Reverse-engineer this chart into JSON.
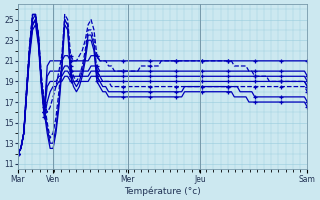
{
  "xlabel": "Température (°c)",
  "ylim": [
    10.5,
    26.5
  ],
  "yticks": [
    11,
    13,
    15,
    17,
    19,
    21,
    23,
    25
  ],
  "day_labels": [
    "Mar",
    "Ven",
    "Mer",
    "Jeu",
    "Sam"
  ],
  "day_positions": [
    0.0,
    0.12,
    0.38,
    0.63,
    1.0
  ],
  "bg_color": "#cce8f0",
  "line_color": "#0000bb",
  "grid_color": "#99ccdd",
  "n_points": 100,
  "series": [
    [
      12.0,
      12.5,
      14.0,
      18.5,
      22.5,
      25.5,
      25.5,
      23.5,
      19.5,
      17.0,
      16.0,
      16.5,
      17.5,
      18.5,
      20.0,
      21.5,
      25.5,
      25.0,
      21.5,
      21.0,
      21.0,
      21.5,
      22.0,
      23.0,
      24.5,
      25.0,
      24.0,
      21.5,
      21.0,
      21.0,
      21.0,
      20.5,
      20.5,
      20.0,
      20.0,
      20.0,
      20.0,
      20.0,
      20.0,
      20.0,
      20.0,
      20.0,
      20.5,
      20.5,
      20.5,
      20.5,
      20.5,
      20.5,
      20.5,
      21.0,
      21.0,
      21.0,
      21.0,
      21.0,
      21.0,
      21.0,
      21.0,
      21.0,
      21.0,
      21.0,
      21.0,
      21.0,
      21.0,
      21.0,
      21.0,
      21.0,
      21.0,
      21.0,
      21.0,
      21.0,
      21.0,
      21.0,
      21.0,
      21.0,
      20.5,
      20.5,
      20.5,
      20.5,
      20.5,
      20.0,
      20.0,
      19.5,
      19.5,
      19.5,
      19.5,
      19.5,
      19.0,
      19.0,
      19.0,
      19.0,
      19.0,
      19.0,
      19.0,
      19.0,
      19.0,
      19.0,
      19.0,
      19.0,
      19.0,
      18.5
    ],
    [
      12.0,
      12.5,
      14.0,
      18.5,
      22.5,
      25.5,
      25.5,
      23.5,
      19.5,
      17.0,
      15.0,
      13.5,
      14.0,
      15.5,
      18.0,
      21.0,
      25.0,
      24.5,
      20.5,
      19.5,
      19.0,
      19.5,
      20.5,
      22.0,
      24.0,
      24.0,
      23.0,
      20.0,
      19.5,
      19.0,
      19.0,
      19.0,
      18.5,
      18.5,
      18.5,
      18.5,
      18.5,
      18.5,
      18.5,
      18.5,
      18.5,
      18.5,
      18.5,
      18.5,
      18.5,
      18.5,
      18.5,
      18.5,
      18.5,
      18.5,
      18.5,
      18.5,
      18.5,
      18.5,
      18.5,
      18.5,
      18.5,
      18.5,
      18.5,
      18.5,
      18.5,
      18.5,
      18.5,
      18.5,
      18.5,
      18.5,
      18.5,
      18.5,
      18.5,
      18.5,
      18.5,
      18.5,
      18.5,
      18.5,
      18.5,
      18.5,
      18.5,
      18.5,
      18.5,
      18.5,
      18.5,
      18.5,
      18.5,
      18.5,
      18.5,
      18.5,
      18.5,
      18.5,
      18.5,
      18.5,
      18.5,
      18.5,
      18.5,
      18.5,
      18.5,
      18.5,
      18.5,
      18.5,
      18.5,
      18.0
    ],
    [
      12.0,
      12.5,
      14.0,
      18.5,
      22.5,
      25.5,
      25.5,
      23.5,
      19.0,
      16.5,
      14.5,
      13.0,
      13.0,
      14.5,
      17.0,
      20.5,
      25.0,
      24.5,
      20.0,
      19.0,
      18.5,
      19.0,
      20.0,
      21.5,
      23.5,
      23.5,
      22.5,
      19.5,
      19.0,
      18.5,
      18.5,
      18.0,
      18.0,
      18.0,
      18.0,
      18.0,
      18.0,
      18.0,
      18.0,
      18.0,
      18.0,
      18.0,
      18.0,
      18.0,
      18.0,
      18.0,
      18.0,
      18.0,
      18.0,
      18.0,
      18.0,
      18.0,
      18.0,
      18.0,
      18.0,
      18.0,
      18.0,
      18.5,
      18.5,
      18.5,
      18.5,
      18.5,
      18.5,
      18.5,
      18.5,
      18.5,
      18.5,
      18.5,
      18.5,
      18.5,
      18.5,
      18.5,
      18.5,
      18.5,
      18.5,
      18.5,
      18.0,
      18.0,
      18.0,
      18.0,
      18.0,
      17.5,
      17.5,
      17.5,
      17.5,
      17.5,
      17.5,
      17.5,
      17.5,
      17.5,
      17.5,
      17.5,
      17.5,
      17.5,
      17.5,
      17.5,
      17.5,
      17.5,
      17.5,
      17.0
    ],
    [
      12.0,
      12.5,
      14.0,
      18.0,
      22.0,
      25.0,
      25.5,
      23.0,
      19.0,
      16.0,
      14.0,
      12.5,
      12.5,
      14.0,
      16.5,
      20.0,
      24.5,
      24.0,
      19.5,
      18.5,
      18.0,
      18.5,
      19.5,
      21.0,
      23.0,
      23.0,
      22.0,
      19.0,
      18.5,
      18.0,
      18.0,
      17.5,
      17.5,
      17.5,
      17.5,
      17.5,
      17.5,
      17.5,
      17.5,
      17.5,
      17.5,
      17.5,
      17.5,
      17.5,
      17.5,
      17.5,
      17.5,
      17.5,
      17.5,
      17.5,
      17.5,
      17.5,
      17.5,
      17.5,
      17.5,
      17.5,
      17.5,
      18.0,
      18.0,
      18.0,
      18.0,
      18.0,
      18.0,
      18.0,
      18.0,
      18.0,
      18.0,
      18.0,
      18.0,
      18.0,
      18.0,
      18.0,
      18.0,
      18.0,
      17.5,
      17.5,
      17.5,
      17.5,
      17.5,
      17.0,
      17.0,
      17.0,
      17.0,
      17.0,
      17.0,
      17.0,
      17.0,
      17.0,
      17.0,
      17.0,
      17.0,
      17.0,
      17.0,
      17.0,
      17.0,
      17.0,
      17.0,
      17.0,
      17.0,
      16.5
    ],
    [
      12.0,
      12.5,
      14.0,
      18.0,
      22.0,
      24.5,
      25.0,
      23.0,
      19.0,
      16.0,
      20.5,
      21.0,
      21.0,
      21.0,
      21.0,
      21.0,
      21.5,
      21.5,
      21.0,
      21.0,
      21.0,
      21.0,
      21.0,
      21.0,
      21.0,
      21.5,
      21.5,
      21.5,
      21.0,
      21.0,
      21.0,
      21.0,
      21.0,
      21.0,
      21.0,
      21.0,
      21.0,
      21.0,
      21.0,
      21.0,
      21.0,
      21.0,
      21.0,
      21.0,
      21.0,
      21.0,
      21.0,
      21.0,
      21.0,
      21.0,
      21.0,
      21.0,
      21.0,
      21.0,
      21.0,
      21.0,
      21.0,
      21.0,
      21.0,
      21.0,
      21.0,
      21.0,
      21.0,
      21.0,
      21.0,
      21.0,
      21.0,
      21.0,
      21.0,
      21.0,
      21.0,
      21.0,
      21.0,
      21.0,
      21.0,
      21.0,
      21.0,
      21.0,
      21.0,
      21.0,
      21.0,
      21.0,
      21.0,
      21.0,
      21.0,
      21.0,
      21.0,
      21.0,
      21.0,
      21.0,
      21.0,
      21.0,
      21.0,
      21.0,
      21.0,
      21.0,
      21.0,
      21.0,
      21.0,
      21.0
    ],
    [
      12.0,
      12.5,
      14.0,
      18.0,
      22.0,
      24.5,
      25.0,
      23.0,
      19.0,
      16.0,
      19.5,
      20.0,
      20.0,
      20.0,
      20.0,
      20.0,
      20.5,
      20.5,
      20.0,
      20.0,
      20.0,
      20.0,
      20.0,
      20.0,
      20.0,
      20.5,
      20.5,
      20.5,
      20.0,
      20.0,
      20.0,
      20.0,
      20.0,
      20.0,
      20.0,
      20.0,
      20.0,
      20.0,
      20.0,
      20.0,
      20.0,
      20.0,
      20.0,
      20.0,
      20.0,
      20.0,
      20.0,
      20.0,
      20.0,
      20.0,
      20.0,
      20.0,
      20.0,
      20.0,
      20.0,
      20.0,
      20.0,
      20.0,
      20.0,
      20.0,
      20.0,
      20.0,
      20.0,
      20.0,
      20.0,
      20.0,
      20.0,
      20.0,
      20.0,
      20.0,
      20.0,
      20.0,
      20.0,
      20.0,
      20.0,
      20.0,
      20.0,
      20.0,
      20.0,
      20.0,
      20.0,
      20.0,
      20.0,
      20.0,
      20.0,
      20.0,
      20.0,
      20.0,
      20.0,
      20.0,
      20.0,
      20.0,
      20.0,
      20.0,
      20.0,
      20.0,
      20.0,
      20.0,
      20.0,
      19.5
    ],
    [
      12.0,
      12.5,
      14.0,
      18.0,
      22.0,
      24.5,
      25.0,
      23.0,
      19.0,
      16.0,
      18.5,
      19.0,
      19.0,
      19.0,
      19.5,
      19.5,
      20.0,
      20.0,
      19.5,
      19.5,
      19.5,
      19.5,
      19.5,
      19.5,
      19.5,
      20.0,
      20.0,
      20.0,
      19.5,
      19.5,
      19.5,
      19.5,
      19.5,
      19.5,
      19.5,
      19.5,
      19.5,
      19.5,
      19.5,
      19.5,
      19.5,
      19.5,
      19.5,
      19.5,
      19.5,
      19.5,
      19.5,
      19.5,
      19.5,
      19.5,
      19.5,
      19.5,
      19.5,
      19.5,
      19.5,
      19.5,
      19.5,
      19.5,
      19.5,
      19.5,
      19.5,
      19.5,
      19.5,
      19.5,
      19.5,
      19.5,
      19.5,
      19.5,
      19.5,
      19.5,
      19.5,
      19.5,
      19.5,
      19.5,
      19.5,
      19.5,
      19.5,
      19.5,
      19.5,
      19.5,
      19.5,
      19.5,
      19.5,
      19.5,
      19.5,
      19.5,
      19.5,
      19.5,
      19.5,
      19.5,
      19.5,
      19.5,
      19.5,
      19.5,
      19.5,
      19.5,
      19.5,
      19.5,
      19.5,
      19.0
    ],
    [
      12.0,
      12.5,
      14.0,
      18.0,
      21.5,
      24.0,
      24.5,
      22.5,
      18.5,
      15.5,
      17.0,
      18.0,
      18.5,
      18.5,
      19.0,
      19.0,
      19.5,
      19.5,
      19.0,
      19.0,
      19.0,
      19.0,
      19.0,
      19.0,
      19.0,
      19.5,
      19.5,
      19.5,
      19.0,
      19.0,
      19.0,
      19.0,
      19.0,
      19.0,
      19.0,
      19.0,
      19.0,
      19.0,
      19.0,
      19.0,
      19.0,
      19.0,
      19.0,
      19.0,
      19.0,
      19.0,
      19.0,
      19.0,
      19.0,
      19.0,
      19.0,
      19.0,
      19.0,
      19.0,
      19.0,
      19.0,
      19.0,
      19.0,
      19.0,
      19.0,
      19.0,
      19.0,
      19.0,
      19.0,
      19.0,
      19.0,
      19.0,
      19.0,
      19.0,
      19.0,
      19.0,
      19.0,
      19.0,
      19.0,
      19.0,
      19.0,
      19.0,
      19.0,
      19.0,
      19.0,
      19.0,
      19.0,
      19.0,
      19.0,
      19.0,
      19.0,
      19.0,
      19.0,
      19.0,
      19.0,
      19.0,
      19.0,
      19.0,
      19.0,
      19.0,
      19.0,
      19.0,
      19.0,
      19.0,
      18.5
    ]
  ],
  "linestyles": [
    "--",
    "--",
    "-",
    "-",
    "-",
    "-",
    "-",
    "-"
  ],
  "marker_every": 9,
  "linewidth": 0.9
}
